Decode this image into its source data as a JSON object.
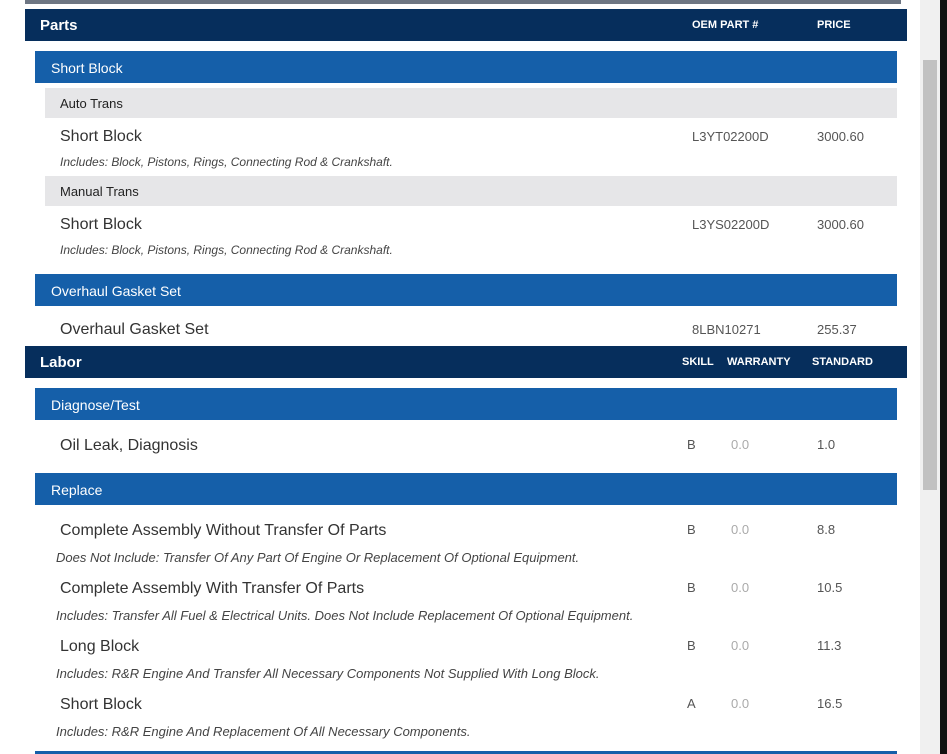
{
  "parts": {
    "title": "Parts",
    "col_oem": "OEM PART #",
    "col_price": "PRICE",
    "groups": [
      {
        "name": "Short Block",
        "subgroups": [
          {
            "name": "Auto Trans",
            "item": {
              "title": "Short Block",
              "desc": "Includes: Block, Pistons, Rings, Connecting Rod & Crankshaft.",
              "oem": "L3YT02200D",
              "price": "3000.60"
            }
          },
          {
            "name": "Manual Trans",
            "item": {
              "title": "Short Block",
              "desc": "Includes: Block, Pistons, Rings, Connecting Rod & Crankshaft.",
              "oem": "L3YS02200D",
              "price": "3000.60"
            }
          }
        ]
      },
      {
        "name": "Overhaul Gasket Set",
        "item": {
          "title": "Overhaul Gasket Set",
          "oem": "8LBN10271",
          "price": "255.37"
        }
      }
    ]
  },
  "labor": {
    "title": "Labor",
    "col_skill": "SKILL",
    "col_warranty": "WARRANTY",
    "col_standard": "STANDARD",
    "groups": [
      {
        "name": "Diagnose/Test",
        "items": [
          {
            "title": "Oil Leak, Diagnosis",
            "skill": "B",
            "warranty": "0.0",
            "standard": "1.0"
          }
        ]
      },
      {
        "name": "Replace",
        "items": [
          {
            "title": "Complete Assembly Without Transfer Of Parts",
            "desc": "Does Not Include: Transfer Of Any Part Of Engine Or Replacement Of Optional Equipment.",
            "skill": "B",
            "warranty": "0.0",
            "standard": "8.8"
          },
          {
            "title": "Complete Assembly With Transfer Of Parts",
            "desc": "Includes: Transfer All Fuel & Electrical Units. Does Not Include Replacement Of Optional Equipment.",
            "skill": "B",
            "warranty": "0.0",
            "standard": "10.5"
          },
          {
            "title": "Long Block",
            "desc": "Includes: R&R Engine And Transfer All Necessary Components Not Supplied With Long Block.",
            "skill": "B",
            "warranty": "0.0",
            "standard": "11.3"
          },
          {
            "title": "Short Block",
            "desc": "Includes: R&R Engine And Replacement Of All Necessary Components.",
            "skill": "A",
            "warranty": "0.0",
            "standard": "16.5"
          }
        ]
      }
    ]
  }
}
